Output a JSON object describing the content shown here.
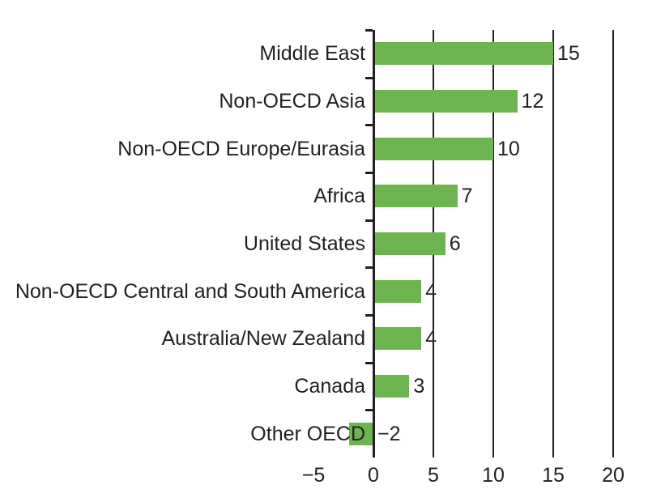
{
  "chart_data": {
    "type": "bar",
    "orientation": "horizontal",
    "title": "",
    "categories": [
      "Middle East",
      "Non-OECD Asia",
      "Non-OECD Europe/Eurasia",
      "Africa",
      "United States",
      "Non-OECD Central and South America",
      "Australia/New Zealand",
      "Canada",
      "Other OECD"
    ],
    "values": [
      15,
      12,
      10,
      7,
      6,
      4,
      4,
      3,
      -2
    ],
    "value_labels": [
      "15",
      "12",
      "10",
      "7",
      "6",
      "4",
      "4",
      "3",
      "−2"
    ],
    "xlim": [
      -5,
      20
    ],
    "xticks": [
      {
        "value": -5,
        "label": "−5"
      },
      {
        "value": 0,
        "label": "0"
      },
      {
        "value": 5,
        "label": "5"
      },
      {
        "value": 10,
        "label": "10"
      },
      {
        "value": 15,
        "label": "15"
      },
      {
        "value": 20,
        "label": "20"
      }
    ],
    "gridlines_at": [
      5,
      10,
      15,
      20
    ],
    "grid": "vertical-lines",
    "legend": "none",
    "bar_color": "#6CB44E",
    "axis_color": "#231F20",
    "text_color": "#231F20",
    "background_color": "#FFFFFF"
  }
}
